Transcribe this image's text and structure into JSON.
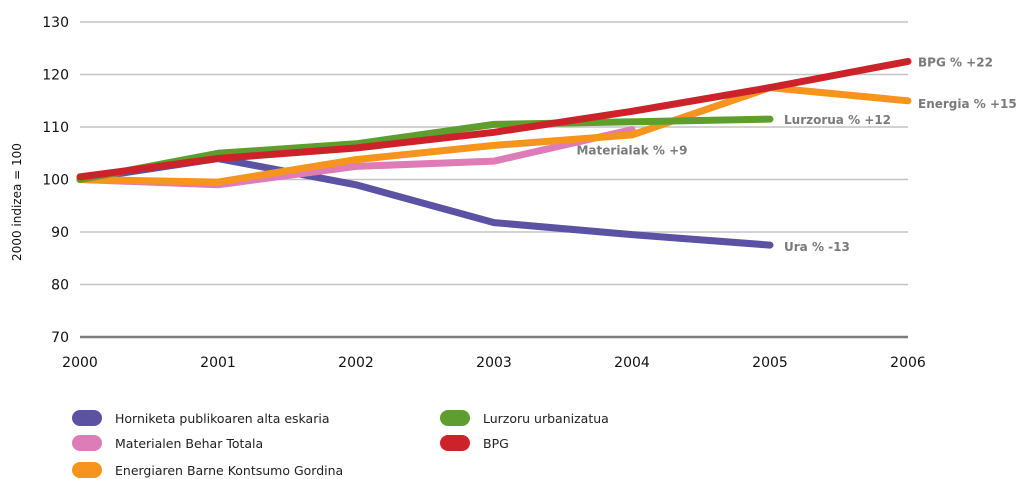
{
  "chart_data": {
    "type": "line",
    "ylabel": "2000 indizea = 100",
    "xlabel": "",
    "x": [
      "2000",
      "2001",
      "2002",
      "2003",
      "2004",
      "2005",
      "2006"
    ],
    "ylim": [
      70,
      130
    ],
    "yticks": [
      70,
      80,
      90,
      100,
      110,
      120,
      130
    ],
    "grid": true,
    "legend_position": "bottom",
    "series": [
      {
        "name": "Horniketa publikoaren alta eskaria",
        "color": "#5b52a3",
        "points": [
          [
            2000,
            100
          ],
          [
            2001,
            104
          ],
          [
            2002,
            99
          ],
          [
            2003,
            91.8
          ],
          [
            2004,
            89.5
          ],
          [
            2005,
            87.5
          ]
        ],
        "end_label": "Ura % -13"
      },
      {
        "name": "Materialen Behar Totala",
        "color": "#de7cb8",
        "points": [
          [
            2000,
            100
          ],
          [
            2001,
            99
          ],
          [
            2002,
            102.5
          ],
          [
            2003,
            103.5
          ],
          [
            2004,
            109.5
          ]
        ],
        "end_label": "Materialak % +9"
      },
      {
        "name": "Energiaren Barne Kontsumo Gordina",
        "color": "#f7941d",
        "points": [
          [
            2000,
            100
          ],
          [
            2001,
            99.5
          ],
          [
            2002,
            103.8
          ],
          [
            2003,
            106.5
          ],
          [
            2004,
            108.5
          ],
          [
            2005,
            117.5
          ],
          [
            2006,
            115
          ]
        ],
        "end_label": "Energia % +15"
      },
      {
        "name": "Lurzoru urbanizatua",
        "color": "#5e9e2e",
        "points": [
          [
            2000,
            100
          ],
          [
            2001,
            105
          ],
          [
            2002,
            106.8
          ],
          [
            2003,
            110.5
          ],
          [
            2004,
            111
          ],
          [
            2005,
            111.5
          ]
        ],
        "end_label": "Lurzorua % +12"
      },
      {
        "name": "BPG",
        "color": "#cc2229",
        "points": [
          [
            2000,
            100.5
          ],
          [
            2001,
            104
          ],
          [
            2002,
            106
          ],
          [
            2003,
            109
          ],
          [
            2004,
            113
          ],
          [
            2005,
            117.5
          ],
          [
            2006,
            122.5
          ]
        ],
        "end_label": "BPG % +22"
      }
    ]
  }
}
